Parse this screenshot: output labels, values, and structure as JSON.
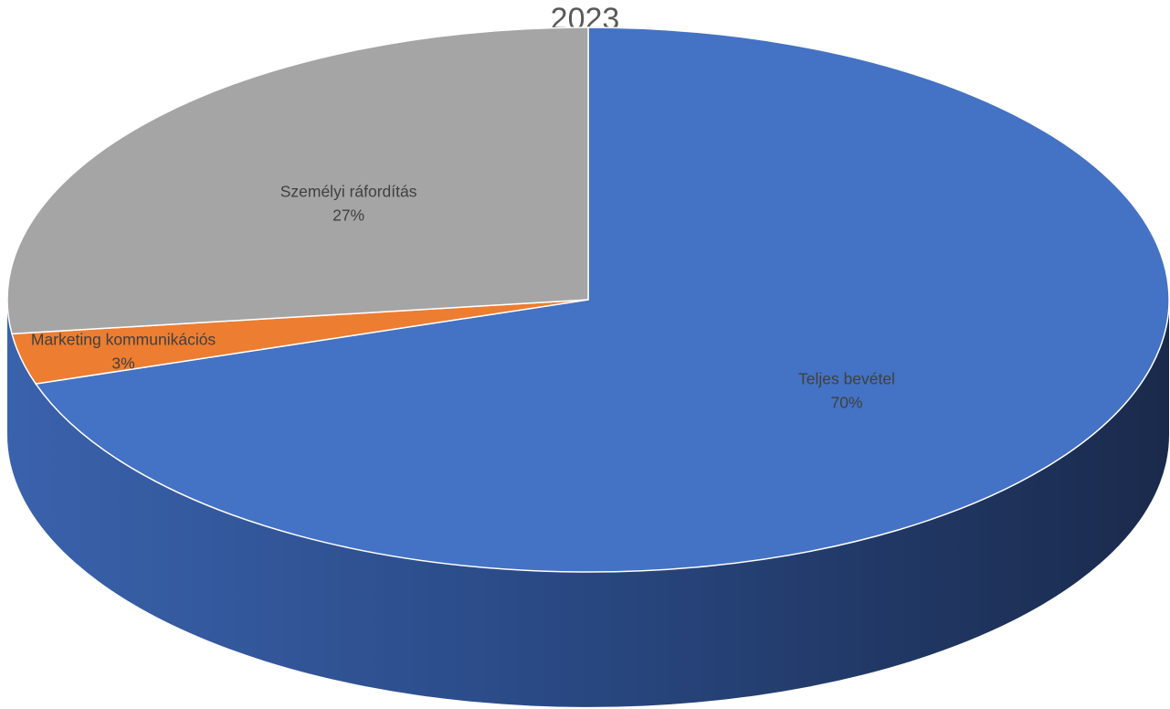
{
  "chart_data": {
    "type": "pie",
    "title": "2023",
    "slices": [
      {
        "name": "Teljes bevétel",
        "value": 70,
        "label": "70%",
        "color": "#4472C4"
      },
      {
        "name": "Marketing kommunikációs",
        "value": 3,
        "label": "3%",
        "color": "#ED7D31"
      },
      {
        "name": "Személyi ráfordítás",
        "value": 27,
        "label": "27%",
        "color": "#A5A5A5"
      }
    ],
    "style": "3d",
    "legend": "none"
  }
}
